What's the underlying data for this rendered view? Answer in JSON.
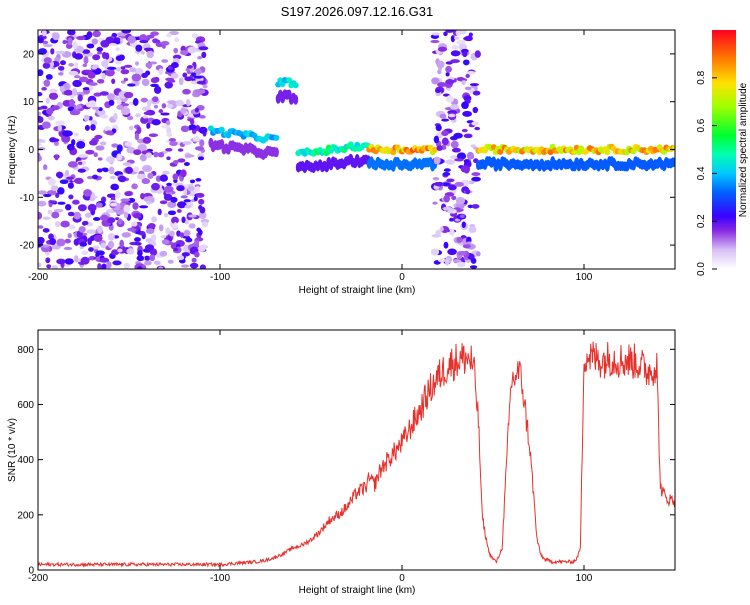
{
  "page_title": "S197.2026.097.12.16.G31",
  "colors": {
    "snr_line": "#e8302a",
    "colormap": [
      "#ffffff",
      "#e6d2f7",
      "#c89af0",
      "#9b3ff0",
      "#6a00e8",
      "#2a00ff",
      "#0050ff",
      "#00ccff",
      "#00ffb0",
      "#00ff30",
      "#a0ff00",
      "#ffee00",
      "#ff8800",
      "#ff1010"
    ]
  },
  "chart_data": [
    {
      "type": "heatmap",
      "title": "S197.2026.097.12.16.G31",
      "xlabel": "Height of straight line (km)",
      "ylabel": "Frequency (Hz)",
      "xlim": [
        -200,
        150
      ],
      "ylim": [
        -25,
        25
      ],
      "x_ticks": [
        -200,
        -100,
        0,
        100
      ],
      "x_tick_labels": [
        "-200",
        "-100",
        "0",
        "100"
      ],
      "y_ticks": [
        -20,
        -10,
        0,
        10,
        20
      ],
      "y_tick_labels": [
        "-20",
        "-10",
        "0",
        "10",
        "20"
      ],
      "colorbar": {
        "label": "Normalized spectral amplitude",
        "range": [
          0,
          1
        ],
        "ticks": [
          0.0,
          0.2,
          0.4,
          0.6,
          0.8
        ],
        "tick_labels": [
          "0.0",
          "0.2",
          "0.4",
          "0.6",
          "0.8"
        ]
      },
      "regions": [
        {
          "name": "noise",
          "x_range": [
            -200,
            -108
          ],
          "peak_freq": null,
          "amplitude": 0.15
        },
        {
          "name": "weak track",
          "x_range": [
            -105,
            -68
          ],
          "peak_freq": [
            4,
            2
          ],
          "amplitude": 0.45
        },
        {
          "name": "burst",
          "x_range": [
            -68,
            -58
          ],
          "peak_freq": 14,
          "amplitude": 0.5
        },
        {
          "name": "track",
          "x_range": [
            -57,
            -18
          ],
          "peak_freq": [
            -1,
            1
          ],
          "amplitude": 0.55
        },
        {
          "name": "strong track",
          "x_range": [
            -18,
            18
          ],
          "peak_freq": 0,
          "amplitude": 0.95
        },
        {
          "name": "noise",
          "x_range": [
            18,
            42
          ],
          "peak_freq": null,
          "amplitude": 0.15
        },
        {
          "name": "strong track",
          "x_range": [
            42,
            150
          ],
          "peak_freq": 0,
          "amplitude": 0.9
        }
      ]
    },
    {
      "type": "line",
      "xlabel": "Height of straight line (km)",
      "ylabel": "SNR (10 * v/v)",
      "xlim": [
        -200,
        150
      ],
      "ylim": [
        0,
        870
      ],
      "x_ticks": [
        -200,
        -100,
        0,
        100
      ],
      "x_tick_labels": [
        "-200",
        "-100",
        "0",
        "100"
      ],
      "y_ticks": [
        0,
        200,
        400,
        600,
        800
      ],
      "y_tick_labels": [
        "0",
        "200",
        "400",
        "600",
        "800"
      ],
      "series": [
        {
          "name": "SNR",
          "x": [
            -200,
            -180,
            -160,
            -140,
            -120,
            -100,
            -90,
            -80,
            -75,
            -70,
            -65,
            -60,
            -55,
            -50,
            -45,
            -40,
            -35,
            -30,
            -25,
            -20,
            -18,
            -15,
            -12,
            -10,
            -5,
            0,
            5,
            10,
            15,
            20,
            25,
            30,
            35,
            38,
            40,
            42,
            44,
            46,
            48,
            50,
            52,
            55,
            58,
            60,
            62,
            64,
            66,
            68,
            70,
            72,
            74,
            76,
            78,
            80,
            82,
            84,
            86,
            88,
            90,
            92,
            94,
            96,
            98,
            100,
            105,
            110,
            115,
            120,
            125,
            130,
            135,
            140,
            142,
            145,
            150
          ],
          "values": [
            20,
            20,
            20,
            20,
            20,
            20,
            25,
            30,
            35,
            45,
            60,
            80,
            90,
            110,
            140,
            180,
            200,
            230,
            280,
            300,
            330,
            310,
            360,
            380,
            420,
            460,
            520,
            580,
            650,
            700,
            740,
            760,
            770,
            760,
            700,
            540,
            200,
            120,
            60,
            40,
            30,
            80,
            450,
            680,
            700,
            720,
            680,
            560,
            460,
            300,
            120,
            60,
            40,
            35,
            30,
            30,
            30,
            30,
            30,
            30,
            30,
            40,
            80,
            780,
            770,
            760,
            770,
            760,
            760,
            750,
            720,
            740,
            300,
            260,
            250
          ]
        }
      ]
    }
  ]
}
